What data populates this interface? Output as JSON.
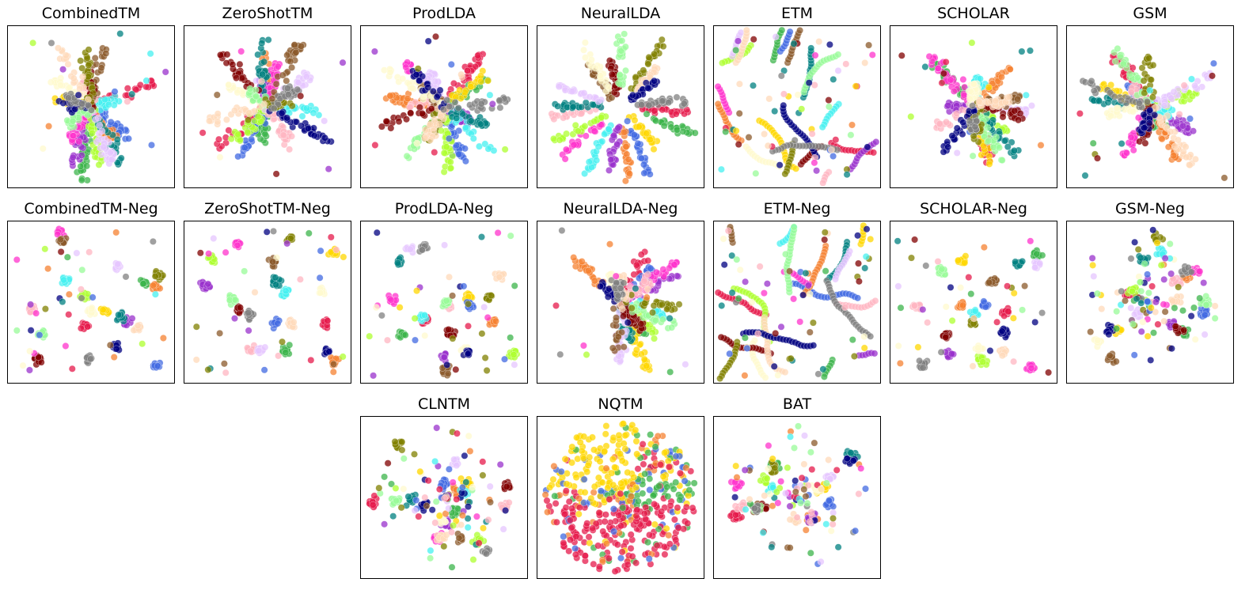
{
  "figure": {
    "chart_type": "scatter",
    "axes_shown": false,
    "marker_alpha": 0.75,
    "palette": [
      "#e6194b",
      "#3cb44b",
      "#ffd700",
      "#4169e1",
      "#f58231",
      "#9932cc",
      "#46f0f0",
      "#ff33cc",
      "#adff2f",
      "#ffb6c1",
      "#008080",
      "#e6c6ff",
      "#8b5a2b",
      "#fffacd",
      "#800000",
      "#98fb98",
      "#808000",
      "#ffdab9",
      "#000080",
      "#808080"
    ]
  },
  "chart_data": [
    {
      "type": "scatter",
      "title": "CombinedTM",
      "pattern": "star",
      "seed": 11
    },
    {
      "type": "scatter",
      "title": "ZeroShotTM",
      "pattern": "star",
      "seed": 12
    },
    {
      "type": "scatter",
      "title": "ProdLDA",
      "pattern": "star",
      "seed": 13
    },
    {
      "type": "scatter",
      "title": "NeuralLDA",
      "pattern": "arms",
      "seed": 14
    },
    {
      "type": "scatter",
      "title": "ETM",
      "pattern": "worms",
      "seed": 15
    },
    {
      "type": "scatter",
      "title": "SCHOLAR",
      "pattern": "star",
      "seed": 16
    },
    {
      "type": "scatter",
      "title": "GSM",
      "pattern": "star",
      "seed": 17
    },
    {
      "type": "scatter",
      "title": "CombinedTM-Neg",
      "pattern": "islands",
      "seed": 21
    },
    {
      "type": "scatter",
      "title": "ZeroShotTM-Neg",
      "pattern": "islands",
      "seed": 22
    },
    {
      "type": "scatter",
      "title": "ProdLDA-Neg",
      "pattern": "islands",
      "seed": 23
    },
    {
      "type": "scatter",
      "title": "NeuralLDA-Neg",
      "pattern": "star",
      "seed": 24
    },
    {
      "type": "scatter",
      "title": "ETM-Neg",
      "pattern": "worms",
      "seed": 25
    },
    {
      "type": "scatter",
      "title": "SCHOLAR-Neg",
      "pattern": "islands",
      "seed": 26
    },
    {
      "type": "scatter",
      "title": "GSM-Neg",
      "pattern": "dense",
      "seed": 27
    },
    {
      "type": "scatter",
      "title": "CLNTM",
      "pattern": "dense",
      "seed": 31
    },
    {
      "type": "scatter",
      "title": "NQTM",
      "pattern": "blob",
      "seed": 32
    },
    {
      "type": "scatter",
      "title": "BAT",
      "pattern": "dense",
      "seed": 33
    }
  ]
}
